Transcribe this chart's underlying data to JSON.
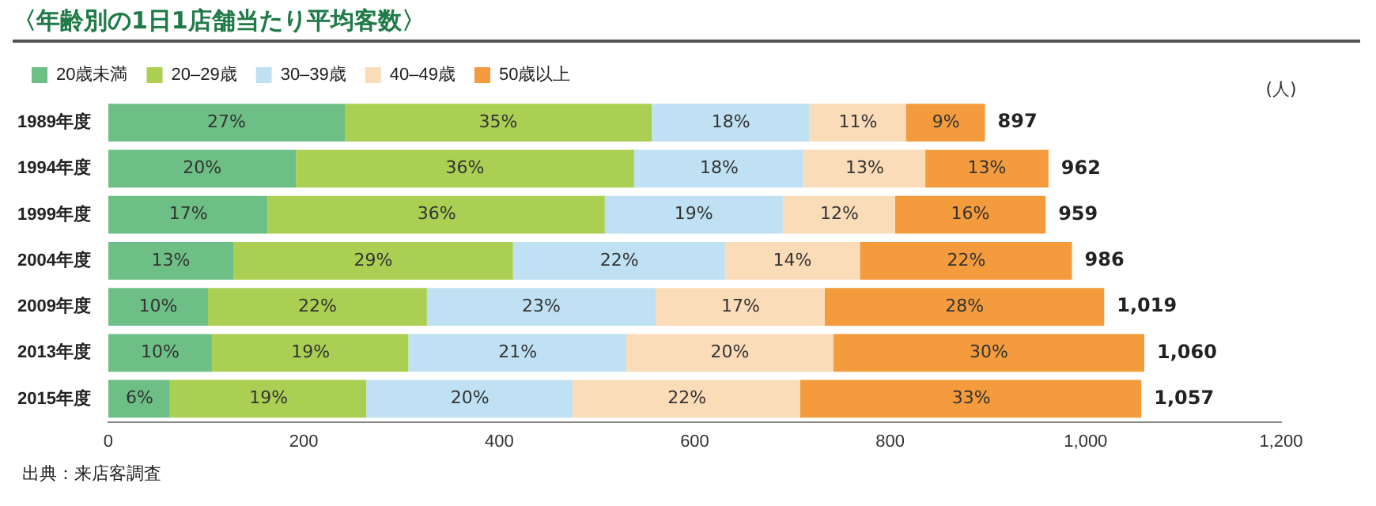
{
  "chart_data": {
    "type": "bar",
    "orientation": "horizontal",
    "stacked": true,
    "title": "〈年齢別の1日1店舗当たり平均客数〉",
    "xlabel": "(人)",
    "categories": [
      "1989年度",
      "1994年度",
      "1999年度",
      "2004年度",
      "2009年度",
      "2013年度",
      "2015年度"
    ],
    "series": [
      {
        "name": "20歳未満",
        "color": "#6dbf86",
        "values": [
          242,
          192,
          163,
          128,
          102,
          106,
          63
        ]
      },
      {
        "name": "20–29歳",
        "color": "#aacf52",
        "values": [
          314,
          346,
          345,
          286,
          224,
          201,
          201
        ]
      },
      {
        "name": "30–39歳",
        "color": "#bfe1f3",
        "values": [
          161,
          173,
          182,
          217,
          234,
          223,
          211
        ]
      },
      {
        "name": "40–49歳",
        "color": "#fbdcb9",
        "values": [
          99,
          125,
          115,
          138,
          173,
          212,
          233
        ]
      },
      {
        "name": "50歳以上",
        "color": "#f39b3d",
        "values": [
          81,
          126,
          154,
          217,
          286,
          318,
          349
        ]
      }
    ],
    "totals": [
      "897",
      "962",
      "959",
      "986",
      "1,019",
      "1,060",
      "1,057"
    ],
    "xlim": [
      0,
      1200
    ],
    "xticks": [
      0,
      200,
      400,
      600,
      800,
      {
        "value": 1000,
        "label": "1,000"
      },
      {
        "value": 1200,
        "label": "1,200"
      }
    ],
    "grid": false,
    "legend": "top left",
    "annotations": [
      {
        "text": "27%",
        "x": 121,
        "y": "1989年度"
      },
      {
        "text": "35%",
        "x": 399,
        "y": "1989年度"
      },
      {
        "text": "18%",
        "x": 637,
        "y": "1989年度"
      },
      {
        "text": "11%",
        "x": 767,
        "y": "1989年度"
      },
      {
        "text": "9%",
        "x": 857,
        "y": "1989年度"
      },
      {
        "text": "20%",
        "x": 96,
        "y": "1994年度"
      },
      {
        "text": "36%",
        "x": 365,
        "y": "1994年度"
      },
      {
        "text": "18%",
        "x": 625,
        "y": "1994年度"
      },
      {
        "text": "13%",
        "x": 774,
        "y": "1994年度"
      },
      {
        "text": "13%",
        "x": 899,
        "y": "1994年度"
      },
      {
        "text": "17%",
        "x": 82,
        "y": "1999年度"
      },
      {
        "text": "36%",
        "x": 336,
        "y": "1999年度"
      },
      {
        "text": "19%",
        "x": 599,
        "y": "1999年度"
      },
      {
        "text": "12%",
        "x": 748,
        "y": "1999年度"
      },
      {
        "text": "16%",
        "x": 882,
        "y": "1999年度"
      },
      {
        "text": "13%",
        "x": 64,
        "y": "2004年度"
      },
      {
        "text": "29%",
        "x": 271,
        "y": "2004年度"
      },
      {
        "text": "22%",
        "x": 523,
        "y": "2004年度"
      },
      {
        "text": "14%",
        "x": 700,
        "y": "2004年度"
      },
      {
        "text": "22%",
        "x": 878,
        "y": "2004年度"
      },
      {
        "text": "10%",
        "x": 51,
        "y": "2009年度"
      },
      {
        "text": "22%",
        "x": 214,
        "y": "2009年度"
      },
      {
        "text": "23%",
        "x": 443,
        "y": "2009年度"
      },
      {
        "text": "17%",
        "x": 647,
        "y": "2009年度"
      },
      {
        "text": "28%",
        "x": 876,
        "y": "2009年度"
      },
      {
        "text": "10%",
        "x": 53,
        "y": "2013年度"
      },
      {
        "text": "19%",
        "x": 207,
        "y": "2013年度"
      },
      {
        "text": "21%",
        "x": 419,
        "y": "2013年度"
      },
      {
        "text": "20%",
        "x": 636,
        "y": "2013年度"
      },
      {
        "text": "30%",
        "x": 901,
        "y": "2013年度"
      },
      {
        "text": "6%",
        "x": 32,
        "y": "2015年度"
      },
      {
        "text": "19%",
        "x": 164,
        "y": "2015年度"
      },
      {
        "text": "20%",
        "x": 370,
        "y": "2015年度"
      },
      {
        "text": "22%",
        "x": 592,
        "y": "2015年度"
      },
      {
        "text": "33%",
        "x": 883,
        "y": "2015年度"
      },
      "出典：来店客調査"
    ]
  }
}
